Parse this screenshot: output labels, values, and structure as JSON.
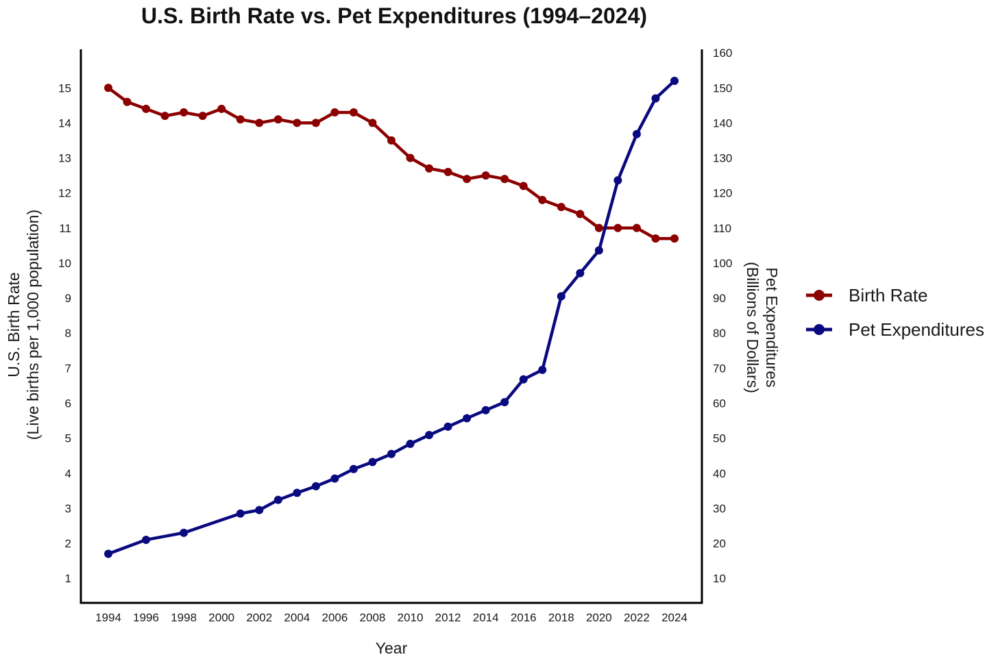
{
  "chart_data": {
    "type": "line",
    "title": "U.S. Birth Rate vs. Pet Expenditures (1994–2024)",
    "xlabel": "Year",
    "ylabel_left": [
      "U.S. Birth Rate",
      "(Live births per 1,000 population)"
    ],
    "ylabel_right": [
      "Pet Expenditures",
      "(Billions of Dollars)"
    ],
    "x_ticks": [
      "1994",
      "1996",
      "1998",
      "2000",
      "2002",
      "2004",
      "2006",
      "2008",
      "2010",
      "2012",
      "2014",
      "2016",
      "2018",
      "2020",
      "2022",
      "2024"
    ],
    "xlim": [
      1994,
      2024
    ],
    "y_left_ticks": [
      1,
      2,
      3,
      4,
      5,
      6,
      7,
      8,
      9,
      10,
      11,
      12,
      13,
      14,
      15
    ],
    "ylim_left": [
      0.3,
      16.1
    ],
    "y_right_ticks": [
      10,
      20,
      30,
      40,
      50,
      60,
      70,
      80,
      90,
      100,
      110,
      120,
      130,
      140,
      150,
      160
    ],
    "ylim_right": [
      3,
      161
    ],
    "grid": false,
    "legend_position": "right",
    "series": [
      {
        "name": "Birth Rate",
        "axis": "left",
        "color": "#8b0000",
        "x": [
          1994,
          1995,
          1996,
          1997,
          1998,
          1999,
          2000,
          2001,
          2002,
          2003,
          2004,
          2005,
          2006,
          2007,
          2008,
          2009,
          2010,
          2011,
          2012,
          2013,
          2014,
          2015,
          2016,
          2017,
          2018,
          2019,
          2020,
          2021,
          2022,
          2023,
          2024
        ],
        "values": [
          15.0,
          14.6,
          14.4,
          14.2,
          14.3,
          14.2,
          14.4,
          14.1,
          14.0,
          14.1,
          14.0,
          14.0,
          14.3,
          14.3,
          14.0,
          13.5,
          13.0,
          12.7,
          12.6,
          12.4,
          12.5,
          12.4,
          12.2,
          11.8,
          11.6,
          11.4,
          11.0,
          11.0,
          11.0,
          10.7,
          10.7
        ]
      },
      {
        "name": "Pet Expenditures",
        "axis": "right",
        "color": "#0a0a80",
        "x": [
          1994,
          1996,
          1998,
          2001,
          2002,
          2003,
          2004,
          2005,
          2006,
          2007,
          2008,
          2009,
          2010,
          2011,
          2012,
          2013,
          2014,
          2015,
          2016,
          2017,
          2018,
          2019,
          2020,
          2021,
          2022,
          2023,
          2024
        ],
        "values": [
          17.0,
          21.0,
          23.0,
          28.5,
          29.5,
          32.4,
          34.4,
          36.3,
          38.5,
          41.2,
          43.2,
          45.5,
          48.4,
          50.9,
          53.3,
          55.7,
          58.0,
          60.3,
          66.8,
          69.5,
          90.5,
          97.1,
          103.6,
          123.6,
          136.8,
          147.0,
          152.0
        ]
      }
    ]
  }
}
